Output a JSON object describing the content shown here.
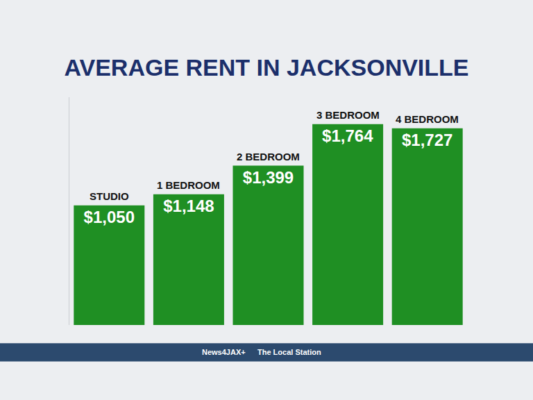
{
  "chart_data": {
    "type": "bar",
    "title": "AVERAGE RENT IN JACKSONVILLE",
    "categories": [
      "STUDIO",
      "1 BEDROOM",
      "2 BEDROOM",
      "3 BEDROOM",
      "4 BEDROOM"
    ],
    "values": [
      1050,
      1148,
      1399,
      1764,
      1727
    ],
    "value_labels": [
      "$1,050",
      "$1,148",
      "$1,399",
      "$1,764",
      "$1,727"
    ],
    "data_labels": true,
    "color": "#1f8f23",
    "ylim": [
      0,
      2000
    ],
    "tick_labels": false,
    "grid": false,
    "annotations": [
      "News4JAX+",
      "The Local Station"
    ]
  }
}
